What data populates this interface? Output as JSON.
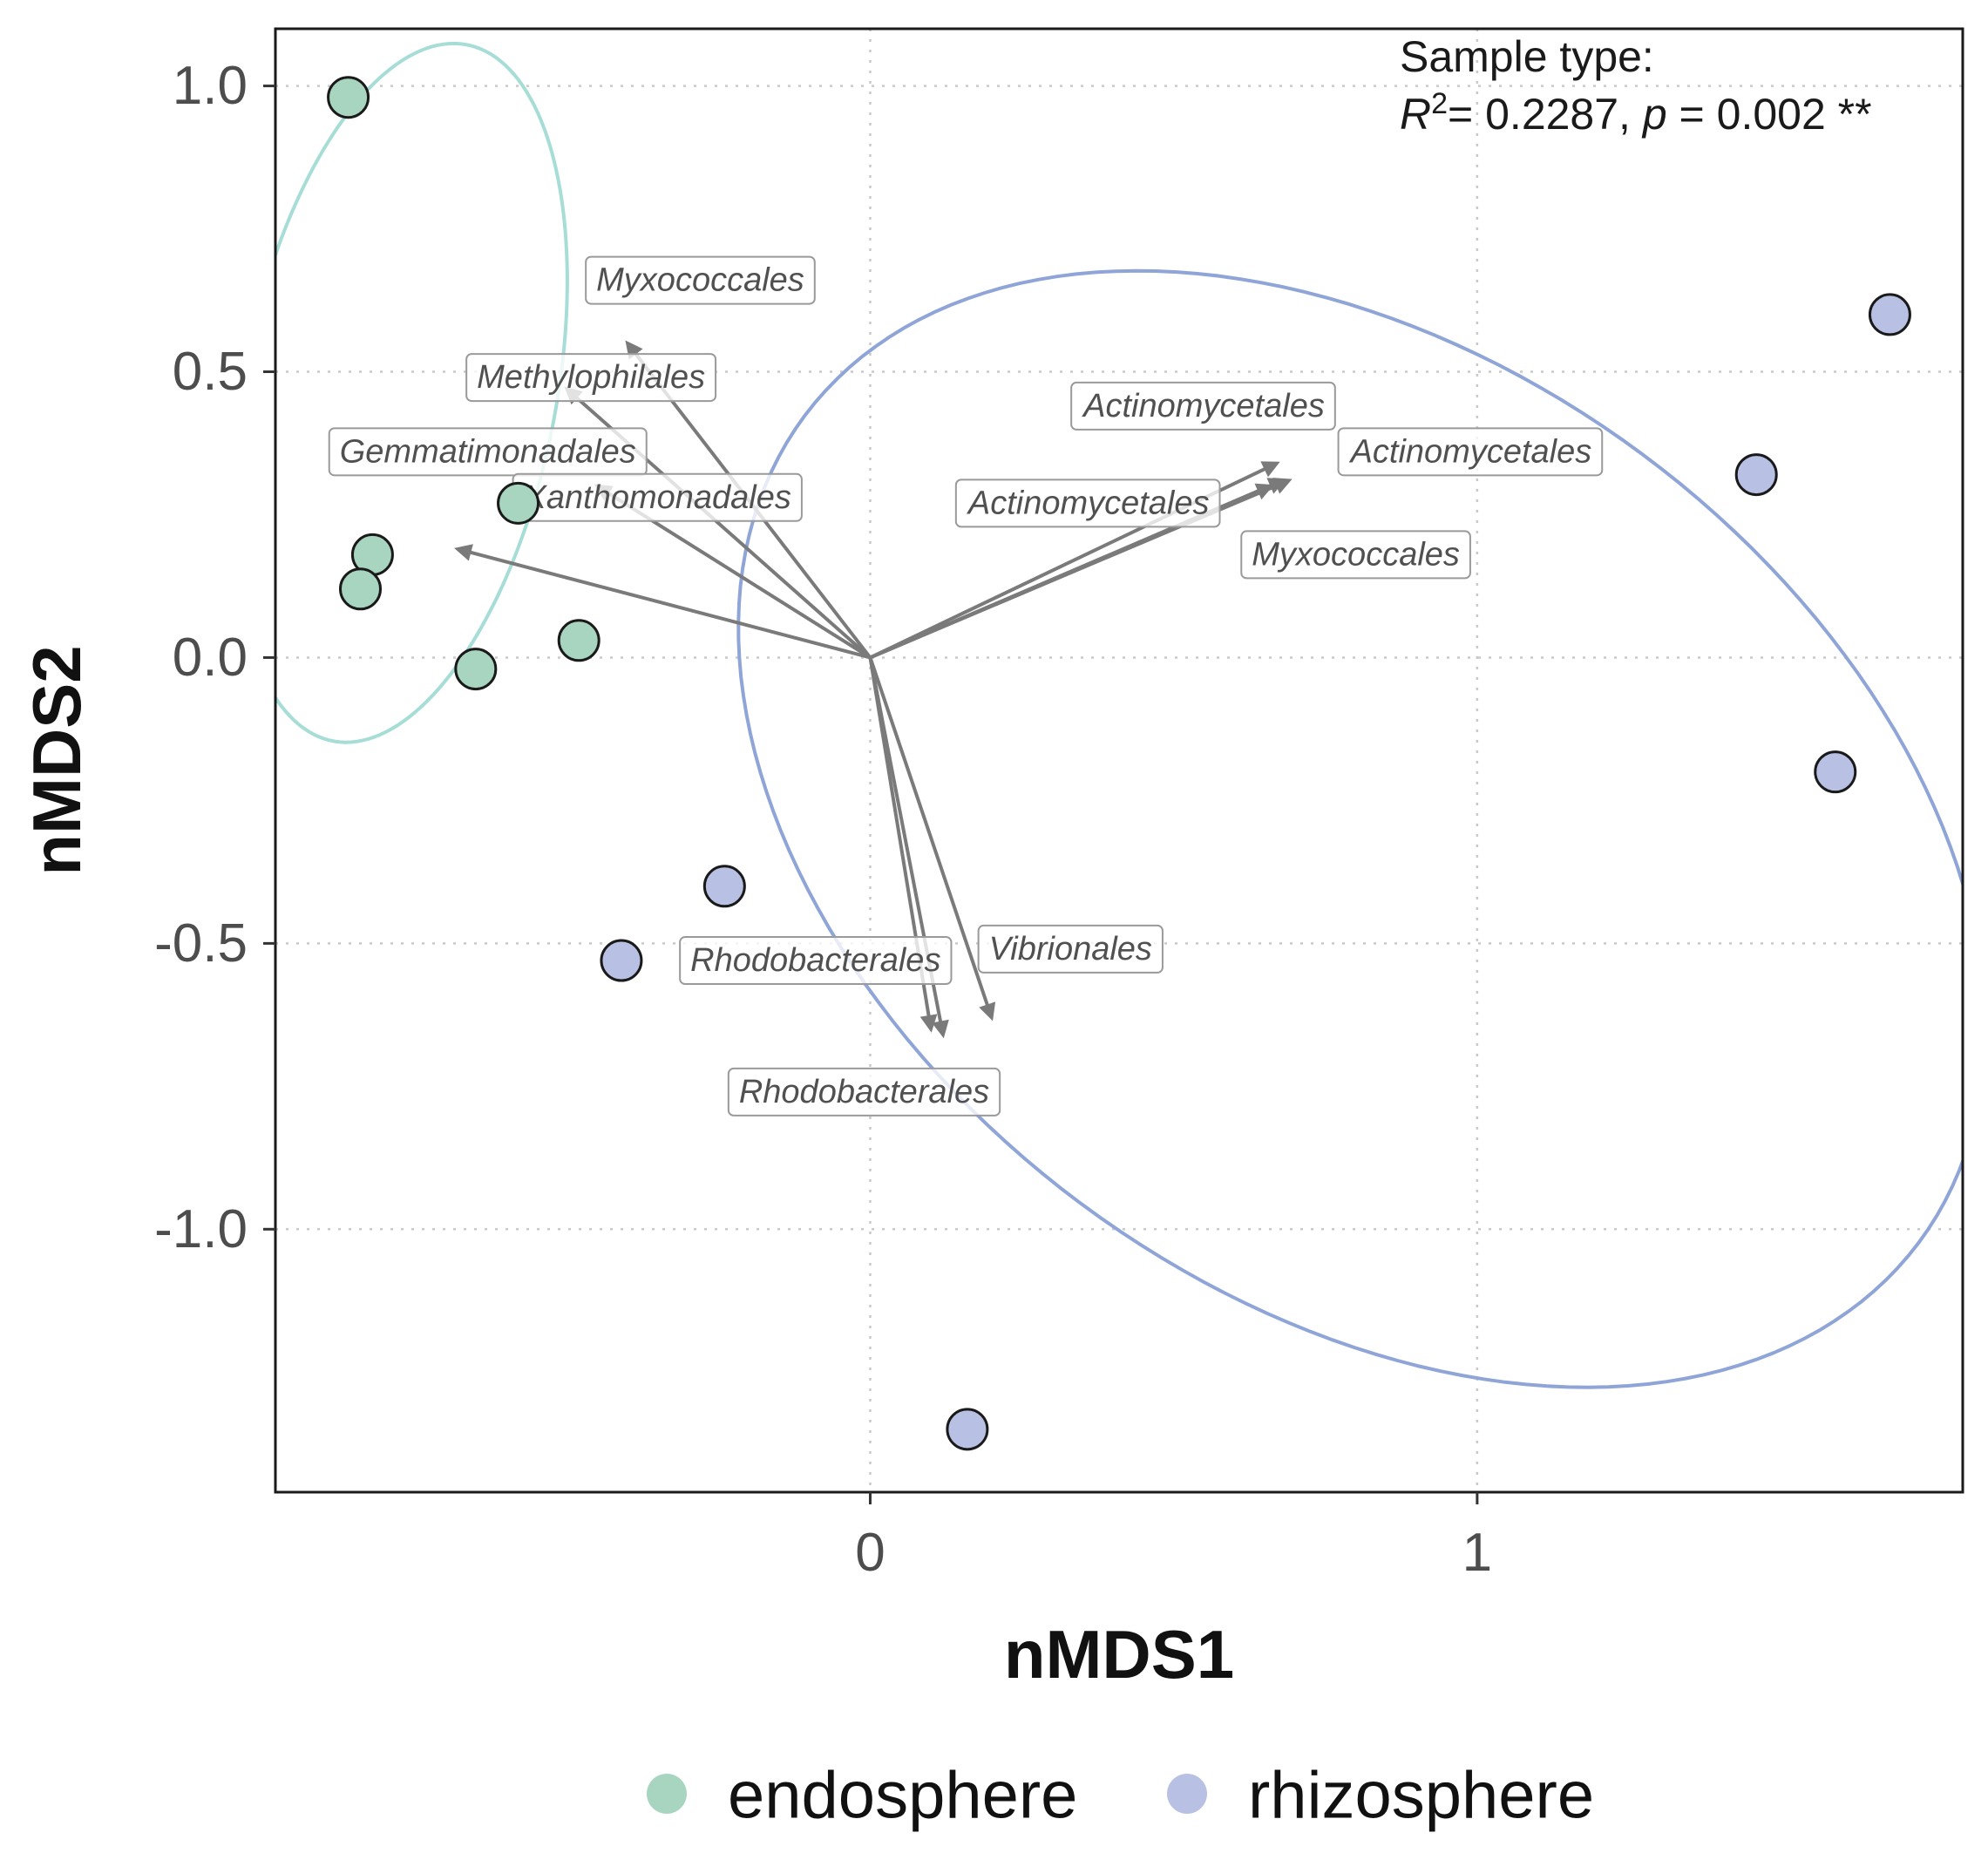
{
  "chart_data": {
    "type": "scatter",
    "xlabel": "nMDS1",
    "ylabel": "nMDS2",
    "xlim": [
      -0.98,
      1.8
    ],
    "ylim": [
      -1.46,
      1.1
    ],
    "x_ticks": [
      {
        "value": 0,
        "label": "0"
      },
      {
        "value": 1,
        "label": "1"
      }
    ],
    "y_ticks": [
      {
        "value": 1.0,
        "label": "1.0"
      },
      {
        "value": 0.5,
        "label": "0.5"
      },
      {
        "value": 0.0,
        "label": "0.0"
      },
      {
        "value": -0.5,
        "label": "-0.5"
      },
      {
        "value": -1.0,
        "label": "-1.0"
      }
    ],
    "grid_x": [
      0,
      1
    ],
    "grid_y": [
      1.0,
      0.5,
      0.0,
      -0.5,
      -1.0
    ],
    "annotation": {
      "line1": "Sample type:",
      "r_label": "R",
      "r_sup": "2",
      "r_rest": "= 0.2287, ",
      "p_label": "p",
      "p_rest": " = 0.002 **"
    },
    "series": [
      {
        "name": "endosphere",
        "color": "#a8d5bf",
        "ellipse_color": "#a6ddd6",
        "ellipse": {
          "cx": -0.775,
          "cy": 0.463,
          "rx": 0.258,
          "ry": 0.619,
          "angle": -10
        },
        "points": [
          {
            "x": -0.86,
            "y": 0.98
          },
          {
            "x": -0.58,
            "y": 0.27
          },
          {
            "x": -0.82,
            "y": 0.18
          },
          {
            "x": -0.84,
            "y": 0.12
          },
          {
            "x": -0.65,
            "y": -0.02
          },
          {
            "x": -0.48,
            "y": 0.03
          }
        ]
      },
      {
        "name": "rhizosphere",
        "color": "#b8c1e3",
        "ellipse_color": "#8fa5d8",
        "ellipse": {
          "cx": 0.81,
          "cy": -0.3,
          "rx": 1.17,
          "ry": 0.8,
          "angle": -41
        },
        "points": [
          {
            "x": 1.68,
            "y": 0.6
          },
          {
            "x": 1.46,
            "y": 0.32
          },
          {
            "x": 1.59,
            "y": -0.2
          },
          {
            "x": -0.24,
            "y": -0.4
          },
          {
            "x": -0.41,
            "y": -0.53
          },
          {
            "x": 0.16,
            "y": -1.35
          }
        ]
      }
    ],
    "vector_origin": {
      "x": 0,
      "y": 0
    },
    "vectors": [
      {
        "label": "Myxococcales",
        "x": -0.4,
        "y": 0.55,
        "lx": -0.28,
        "ly": 0.66
      },
      {
        "label": "Methylophilales",
        "x": -0.5,
        "y": 0.47,
        "lx": -0.46,
        "ly": 0.49
      },
      {
        "label": "Gemmatimonadales",
        "x": -0.68,
        "y": 0.19,
        "lx": -0.63,
        "ly": 0.36
      },
      {
        "label": "Xanthomonadales",
        "x": -0.45,
        "y": 0.3,
        "lx": -0.35,
        "ly": 0.28
      },
      {
        "label": "Actinomycetales",
        "x": 0.67,
        "y": 0.34,
        "lx": 0.55,
        "ly": 0.44
      },
      {
        "label": "Actinomycetales",
        "x": 0.69,
        "y": 0.31,
        "lx": 0.99,
        "ly": 0.36
      },
      {
        "label": "Actinomycetales",
        "x": 0.66,
        "y": 0.3,
        "lx": 0.36,
        "ly": 0.27
      },
      {
        "label": "Myxococcales",
        "x": 0.68,
        "y": 0.31,
        "lx": 0.8,
        "ly": 0.18
      },
      {
        "label": "Rhodobacterales",
        "x": 0.1,
        "y": -0.65,
        "lx": -0.09,
        "ly": -0.53
      },
      {
        "label": "Vibrionales",
        "x": 0.2,
        "y": -0.63,
        "lx": 0.33,
        "ly": -0.51
      },
      {
        "label": "Rhodobacterales",
        "x": 0.12,
        "y": -0.66,
        "lx": -0.01,
        "ly": -0.76
      }
    ]
  }
}
